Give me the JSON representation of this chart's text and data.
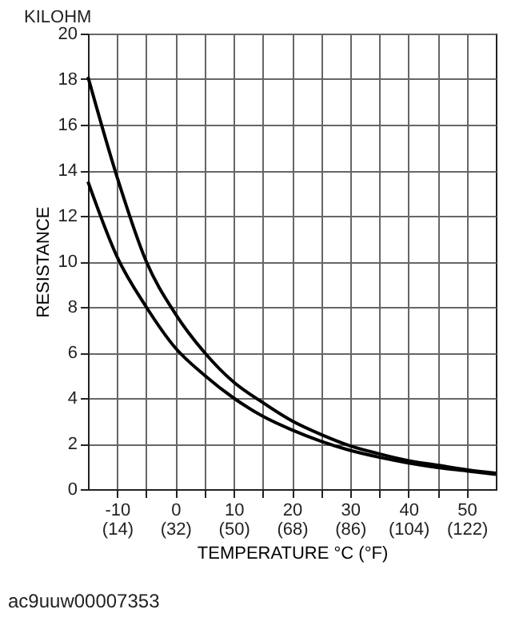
{
  "chart_data": {
    "type": "line",
    "xlabel": "TEMPERATURE    °C (°F)",
    "ylabel": "RESISTANCE",
    "annotations": [
      "KILOHM",
      "ac9uuw00007353"
    ],
    "x": [
      -15,
      -10,
      -5,
      0,
      5,
      10,
      15,
      20,
      25,
      30,
      35,
      40,
      45,
      50,
      55
    ],
    "series": [
      {
        "color": "#000000",
        "values": [
          18.1,
          13.7,
          10.0,
          7.7,
          6.0,
          4.7,
          3.8,
          3.0,
          2.4,
          1.9,
          1.55,
          1.25,
          1.05,
          0.85,
          0.7
        ]
      },
      {
        "color": "#000000",
        "values": [
          13.5,
          10.2,
          8.0,
          6.2,
          5.0,
          4.0,
          3.2,
          2.6,
          2.1,
          1.7,
          1.4,
          1.15,
          0.95,
          0.8,
          0.65
        ]
      }
    ],
    "xlim": [
      -15,
      55
    ],
    "ylim": [
      0,
      20
    ],
    "xticks": [
      -10,
      {
        "value": -5,
        "label": null
      },
      0,
      {
        "value": 5,
        "label": null
      },
      10,
      {
        "value": 15,
        "label": null
      },
      20,
      {
        "value": 25,
        "label": null
      },
      30,
      {
        "value": 35,
        "label": null
      },
      40,
      {
        "value": 45,
        "label": null
      },
      50
    ],
    "x2lim": [
      5,
      131
    ],
    "x2ticks": [
      {
        "value": 14,
        "label": "(14)"
      },
      {
        "value": 32,
        "label": "(32)"
      },
      {
        "value": 50,
        "label": "(50)"
      },
      {
        "value": 68,
        "label": "(68)"
      },
      {
        "value": 86,
        "label": "(86)"
      },
      {
        "value": 104,
        "label": "(104)"
      },
      {
        "value": 122,
        "label": "(122)"
      }
    ],
    "yticks": [
      0,
      2,
      4,
      6,
      8,
      10,
      12,
      14,
      16,
      18,
      20
    ],
    "grid": true,
    "marker": "none",
    "line_style": "solid"
  }
}
